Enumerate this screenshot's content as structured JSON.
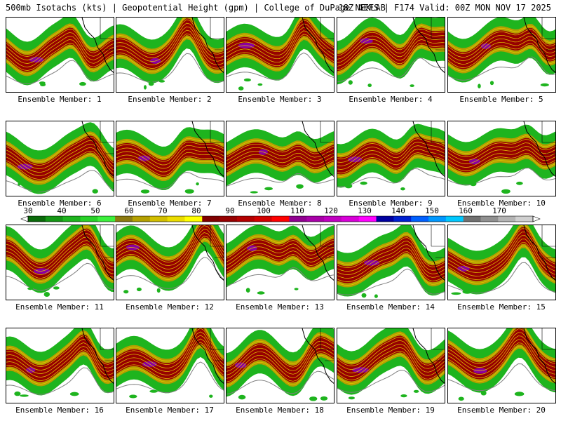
{
  "header": {
    "title_left": "500mb Isotachs (kts) | Geopotential Height (gpm) | College of DuPage NEXLAB",
    "title_right": "18Z GEFS | F174 Valid: 00Z MON NOV 17 2025"
  },
  "members": [
    {
      "id": 1,
      "caption": "Ensemble Member: 1"
    },
    {
      "id": 2,
      "caption": "Ensemble Member: 2"
    },
    {
      "id": 3,
      "caption": "Ensemble Member: 3"
    },
    {
      "id": 4,
      "caption": "Ensemble Member: 4"
    },
    {
      "id": 5,
      "caption": "Ensemble Member: 5"
    },
    {
      "id": 6,
      "caption": "Ensemble Member: 6"
    },
    {
      "id": 7,
      "caption": "Ensemble Member: 7"
    },
    {
      "id": 8,
      "caption": "Ensemble Member: 8"
    },
    {
      "id": 9,
      "caption": "Ensemble Member: 9"
    },
    {
      "id": 10,
      "caption": "Ensemble Member: 10"
    },
    {
      "id": 11,
      "caption": "Ensemble Member: 11"
    },
    {
      "id": 12,
      "caption": "Ensemble Member: 12"
    },
    {
      "id": 13,
      "caption": "Ensemble Member: 13"
    },
    {
      "id": 14,
      "caption": "Ensemble Member: 14"
    },
    {
      "id": 15,
      "caption": "Ensemble Member: 15"
    },
    {
      "id": 16,
      "caption": "Ensemble Member: 16"
    },
    {
      "id": 17,
      "caption": "Ensemble Member: 17"
    },
    {
      "id": 18,
      "caption": "Ensemble Member: 18"
    },
    {
      "id": 19,
      "caption": "Ensemble Member: 19"
    },
    {
      "id": 20,
      "caption": "Ensemble Member: 20"
    }
  ],
  "colorbar": {
    "labels": [
      "30",
      "40",
      "50",
      "60",
      "70",
      "80",
      "90",
      "100",
      "110",
      "120",
      "130",
      "140",
      "150",
      "160",
      "170"
    ],
    "colors": [
      "#0a6a0a",
      "#149614",
      "#1eb41e",
      "#28d228",
      "#3cf03c",
      "#8c7a10",
      "#b4a000",
      "#d2be00",
      "#ebdc00",
      "#ffff00",
      "#800000",
      "#960000",
      "#b40000",
      "#d20000",
      "#ff0000",
      "#900090",
      "#a800a8",
      "#c000c0",
      "#d800d8",
      "#ff00ff",
      "#0000a0",
      "#0020d0",
      "#0060ff",
      "#0098ff",
      "#00c8ff",
      "#707070",
      "#909090",
      "#b4b4b4",
      "#d0d0d0"
    ]
  },
  "colors": {
    "weak": "#1eb41e",
    "moderate": "#b4a000",
    "strong": "#960000",
    "core": "#8a00a0",
    "coast": "#000000",
    "height_contour": "#808080"
  }
}
